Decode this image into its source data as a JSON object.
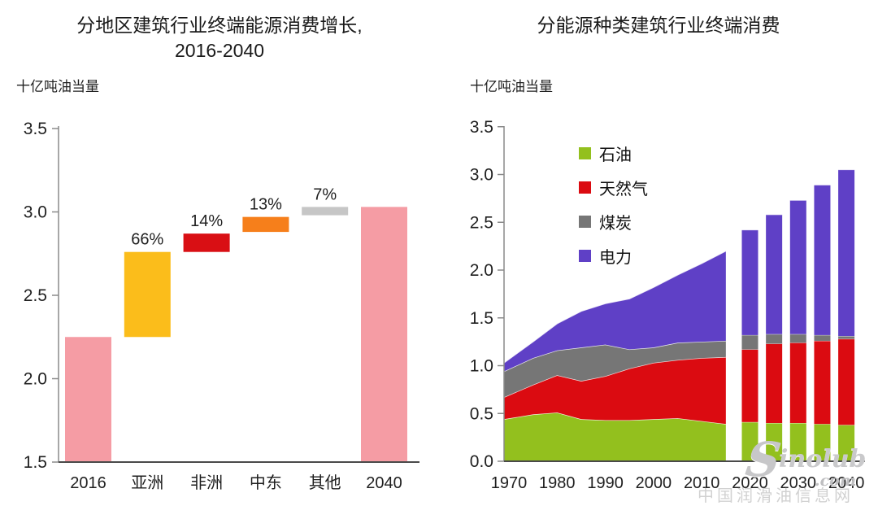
{
  "left_chart": {
    "title_line1": "分地区建筑行业终端能源消费增长,",
    "title_line2": "2016-2040",
    "unit_label": "十亿吨油当量"
  },
  "right_chart": {
    "title": "分能源种类建筑行业终端消费",
    "unit_label": "十亿吨油当量",
    "legend": [
      "石油",
      "天然气",
      "煤炭",
      "电力"
    ]
  },
  "watermark": {
    "logo_initial": "S",
    "logo_rest": "inolub",
    "logo_tld": ".com",
    "cn_text": "中国润滑油信息网"
  },
  "chart_data": [
    {
      "type": "bar",
      "subtype": "waterfall",
      "title": "分地区建筑行业终端能源消费增长, 2016-2040",
      "ylabel": "十亿吨油当量",
      "ylim": [
        1.5,
        3.5
      ],
      "yticks": [
        1.5,
        2.0,
        2.5,
        3.0,
        3.5
      ],
      "categories": [
        "2016",
        "亚洲",
        "非洲",
        "中东",
        "其他",
        "2040"
      ],
      "bars": [
        {
          "category": "2016",
          "from": 1.5,
          "to": 2.25,
          "label": "",
          "color": "#F59CA4"
        },
        {
          "category": "亚洲",
          "from": 2.25,
          "to": 2.76,
          "label": "66%",
          "color": "#FBBD1B"
        },
        {
          "category": "非洲",
          "from": 2.76,
          "to": 2.87,
          "label": "14%",
          "color": "#D90F14"
        },
        {
          "category": "中东",
          "from": 2.88,
          "to": 2.97,
          "label": "13%",
          "color": "#F67F1B"
        },
        {
          "category": "其他",
          "from": 2.98,
          "to": 3.03,
          "label": "7%",
          "color": "#C6C6C6"
        },
        {
          "category": "2040",
          "from": 1.5,
          "to": 3.03,
          "label": "",
          "color": "#F59CA4"
        }
      ]
    },
    {
      "type": "area",
      "subtype": "stacked-area-with-projection-bars",
      "title": "分能源种类建筑行业终端消费",
      "ylabel": "十亿吨油当量",
      "ylim": [
        0,
        3.5
      ],
      "yticks": [
        0.0,
        0.5,
        1.0,
        1.5,
        2.0,
        2.5,
        3.0,
        3.5
      ],
      "xticks": [
        1970,
        1980,
        1990,
        2000,
        2010,
        2020,
        2030,
        2040
      ],
      "series_names": [
        "石油",
        "天然气",
        "煤炭",
        "电力"
      ],
      "colors": {
        "石油": "#93C01E",
        "天然气": "#DB0B11",
        "煤炭": "#767676",
        "电力": "#5F40C6"
      },
      "area": {
        "x": [
          1970,
          1975,
          1980,
          1985,
          1990,
          1995,
          2000,
          2005,
          2010,
          2015
        ],
        "series": [
          {
            "name": "石油",
            "values": [
              0.44,
              0.49,
              0.51,
              0.44,
              0.43,
              0.43,
              0.44,
              0.45,
              0.42,
              0.39
            ]
          },
          {
            "name": "天然气",
            "values": [
              0.23,
              0.31,
              0.39,
              0.4,
              0.46,
              0.54,
              0.59,
              0.61,
              0.66,
              0.7
            ]
          },
          {
            "name": "煤炭",
            "values": [
              0.27,
              0.28,
              0.26,
              0.35,
              0.33,
              0.2,
              0.16,
              0.18,
              0.17,
              0.17
            ]
          },
          {
            "name": "电力",
            "values": [
              0.09,
              0.17,
              0.28,
              0.38,
              0.43,
              0.53,
              0.63,
              0.71,
              0.82,
              0.94
            ]
          }
        ]
      },
      "bars": {
        "x": [
          2020,
          2025,
          2030,
          2035,
          2040
        ],
        "series": [
          {
            "name": "石油",
            "values": [
              0.41,
              0.4,
              0.4,
              0.39,
              0.38
            ]
          },
          {
            "name": "天然气",
            "values": [
              0.76,
              0.83,
              0.84,
              0.87,
              0.9
            ]
          },
          {
            "name": "煤炭",
            "values": [
              0.15,
              0.1,
              0.09,
              0.06,
              0.03
            ]
          },
          {
            "name": "电力",
            "values": [
              1.1,
              1.25,
              1.4,
              1.57,
              1.74
            ]
          }
        ]
      }
    }
  ]
}
